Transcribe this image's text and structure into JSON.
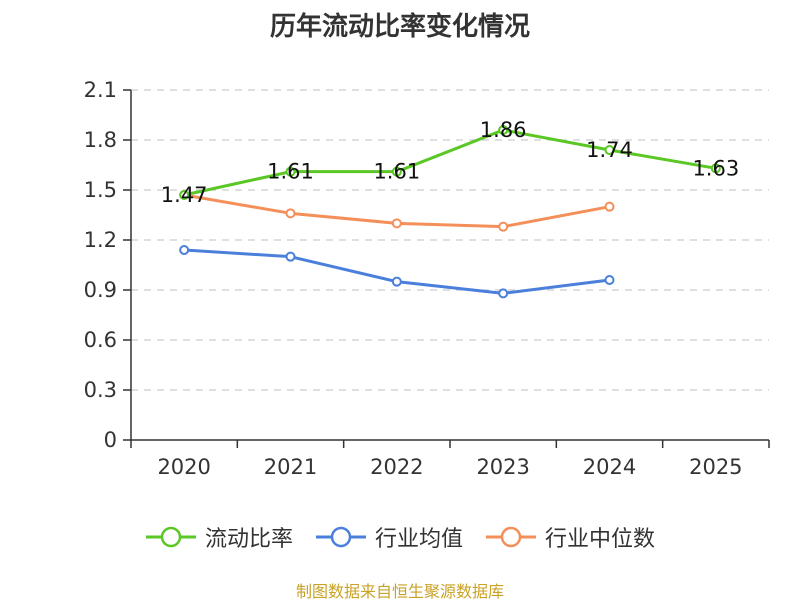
{
  "chart_data": {
    "type": "line",
    "title": "历年流动比率变化情况",
    "categories": [
      "2020",
      "2021",
      "2022",
      "2023",
      "2024",
      "2025"
    ],
    "ylim": [
      0,
      2.1
    ],
    "yticks": [
      "0",
      "0.3",
      "0.6",
      "0.9",
      "1.2",
      "1.5",
      "1.8",
      "2.1"
    ],
    "grid": true,
    "legend_position": "bottom",
    "series": [
      {
        "name": "流动比率",
        "color": "#5ac725",
        "values": [
          1.47,
          1.61,
          1.61,
          1.86,
          1.74,
          1.63
        ],
        "labels": [
          "1.47",
          "1.61",
          "1.61",
          "1.86",
          "1.74",
          "1.63"
        ],
        "show_labels": true
      },
      {
        "name": "行业均值",
        "color": "#4a7fdc",
        "values": [
          1.14,
          1.1,
          0.95,
          0.88,
          0.96,
          null
        ],
        "show_labels": false
      },
      {
        "name": "行业中位数",
        "color": "#f58f5a",
        "values": [
          1.47,
          1.36,
          1.3,
          1.28,
          1.4,
          null
        ],
        "show_labels": false
      }
    ],
    "source": "制图数据来自恒生聚源数据库"
  }
}
